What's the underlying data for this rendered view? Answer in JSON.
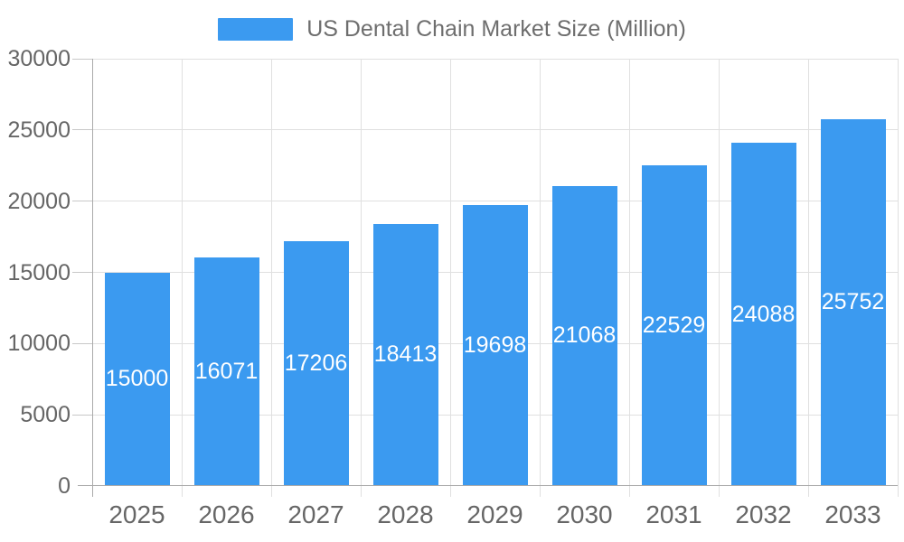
{
  "chart_data": {
    "type": "bar",
    "title": "US Dental Chain Market Size (Million)",
    "legend_entries": [
      "US Dental Chain Market Size (Million)"
    ],
    "legend_position": "top-center",
    "categories": [
      "2025",
      "2026",
      "2027",
      "2028",
      "2029",
      "2030",
      "2031",
      "2032",
      "2033"
    ],
    "series": [
      {
        "name": "US Dental Chain Market Size (Million)",
        "values": [
          15000,
          16071,
          17206,
          18413,
          19698,
          21068,
          22529,
          24088,
          25752
        ]
      }
    ],
    "bar_value_labels": [
      15000,
      16071,
      17206,
      18413,
      19698,
      21068,
      22529,
      24088,
      25752
    ],
    "bar_label_position": "inside-center",
    "xlabel": "",
    "ylabel": "",
    "ylim": [
      0,
      30000
    ],
    "yticks": [
      0,
      5000,
      10000,
      15000,
      20000,
      25000,
      30000
    ],
    "grid": true,
    "colors": {
      "bar": "#3B9AF0",
      "bar_label": "#FFFFFF",
      "axis_text": "#666666",
      "legend_text": "#6E6E6E",
      "grid_line": "#E0E0E0",
      "axis_line": "#AAAAAA",
      "tick": "#C8C8C8",
      "background": "#FFFFFF"
    }
  }
}
